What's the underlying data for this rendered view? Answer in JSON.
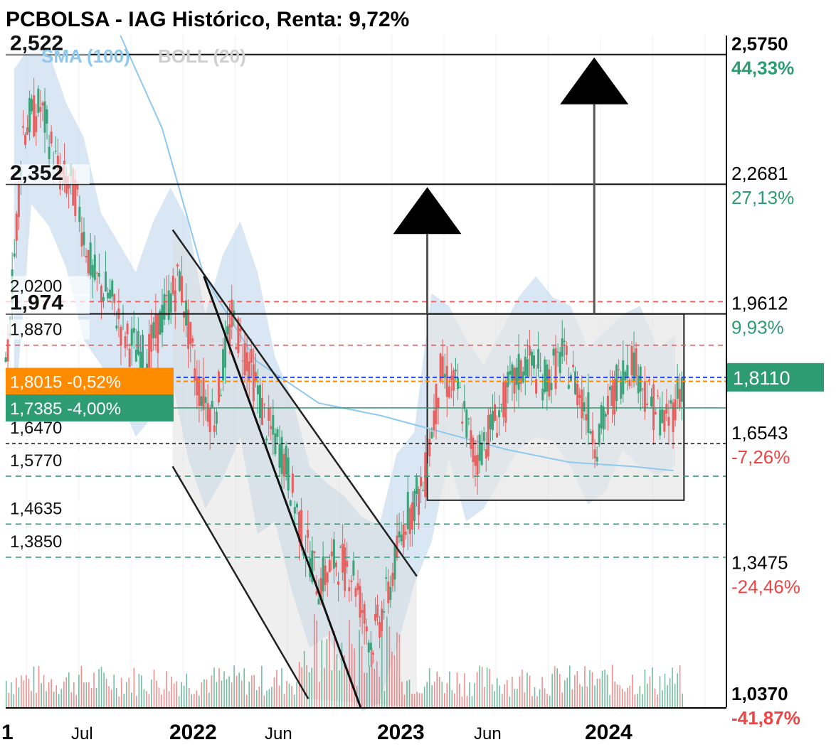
{
  "header": {
    "title": "PCBOLSA - IAG Histórico, Renta: 9,72%"
  },
  "legend": {
    "sma": "SMA (100)",
    "boll": "BOLL (20)",
    "sma_color": "#8fc8ef",
    "boll_color": "#cfcfcf"
  },
  "colors": {
    "up": "#3aa37a",
    "down": "#e86060",
    "band_fill": "#b8d4ea",
    "box_fill": "#e6e6e6",
    "orange": "#ff8c00",
    "green_tag": "#2e9c72",
    "gain_text": "#2e9c72",
    "loss_text": "#ee4444"
  },
  "chart_data": {
    "type": "candlestick",
    "title": "PCBOLSA - IAG Histórico, Renta: 9,72%",
    "x_ticks": [
      "1",
      "Jul",
      "2022",
      "Jun",
      "2023",
      "Jun",
      "2024"
    ],
    "x_range": [
      "2021-01",
      "2024-05"
    ],
    "ylim": [
      1.03,
      2.62
    ],
    "left_levels": [
      {
        "label": "2,522",
        "value": 2.575,
        "style": "solid"
      },
      {
        "label": "2,352",
        "value": 2.268,
        "style": "solid"
      },
      {
        "label": "2,0200",
        "value": 1.99,
        "style": "red-dash"
      },
      {
        "label": "1,974",
        "value": 1.961,
        "style": "solid"
      },
      {
        "label": "1,8870",
        "value": 1.887,
        "style": "red-dash"
      },
      {
        "label": "1,6470",
        "value": 1.654,
        "style": "black-dash"
      },
      {
        "label": "1,5770",
        "value": 1.577,
        "style": "green-dash"
      },
      {
        "label": "1,4635",
        "value": 1.4635,
        "style": "green-dash"
      },
      {
        "label": "1,3850",
        "value": 1.385,
        "style": "green-dash"
      }
    ],
    "right_levels": [
      {
        "price": "2,5750",
        "pct": "44,33%",
        "value": 2.575,
        "bold": true,
        "positive": true
      },
      {
        "price": "2,2681",
        "pct": "27,13%",
        "value": 2.268,
        "bold": false,
        "positive": true
      },
      {
        "price": "1,9612",
        "pct": "9,93%",
        "value": 1.961,
        "bold": false,
        "positive": true
      },
      {
        "price": "1,6543",
        "pct": "-7,26%",
        "value": 1.654,
        "bold": false,
        "positive": false
      },
      {
        "price": "1,3475",
        "pct": "-24,46%",
        "value": 1.3475,
        "bold": false,
        "positive": false
      },
      {
        "price": "1,0370",
        "pct": "-41,87%",
        "value": 1.037,
        "bold": true,
        "positive": false
      }
    ],
    "tags": [
      {
        "text": "1,8015  -0,52%",
        "value": 1.8015,
        "color": "orange"
      },
      {
        "text": "1,7385  -4,00%",
        "value": 1.7385,
        "color": "green"
      }
    ],
    "current_price": {
      "text": "1,8110",
      "value": 1.811
    },
    "channel": {
      "upper": [
        [
          2021.8,
          2.16
        ],
        [
          2022.97,
          1.34
        ]
      ],
      "lower": [
        [
          2021.8,
          1.6
        ],
        [
          2022.45,
          1.05
        ]
      ]
    },
    "steep_line": [
      [
        2021.95,
        2.05
      ],
      [
        2022.7,
        1.03
      ]
    ],
    "range_box": {
      "from": 2023.02,
      "to": 2024.25,
      "top": 1.961,
      "bottom": 1.52
    },
    "targets": [
      {
        "x": 2023.02,
        "base": 1.961,
        "tip": 2.268
      },
      {
        "x": 2023.82,
        "base": 1.961,
        "tip": 2.575
      }
    ],
    "candles_weekly": [
      [
        "2021-01",
        1.8,
        2.4,
        1.78,
        2.46
      ],
      [
        "2021-02",
        2.4,
        2.45,
        2.3,
        2.52
      ],
      [
        "2021-03",
        2.45,
        2.3,
        2.25,
        2.5
      ],
      [
        "2021-04",
        2.3,
        2.25,
        2.15,
        2.38
      ],
      [
        "2021-05",
        2.25,
        2.05,
        1.98,
        2.3
      ],
      [
        "2021-06",
        2.05,
        2.0,
        1.92,
        2.12
      ],
      [
        "2021-07",
        2.0,
        1.9,
        1.85,
        2.05
      ],
      [
        "2021-08",
        1.9,
        1.85,
        1.75,
        1.98
      ],
      [
        "2021-09",
        1.85,
        1.95,
        1.8,
        2.1
      ],
      [
        "2021-10",
        1.95,
        2.05,
        1.9,
        2.18
      ],
      [
        "2021-11",
        2.05,
        1.8,
        1.7,
        2.1
      ],
      [
        "2021-12",
        1.8,
        1.72,
        1.58,
        1.88
      ],
      [
        "2022-01",
        1.72,
        1.95,
        1.65,
        2.02
      ],
      [
        "2022-02",
        1.95,
        1.85,
        1.75,
        2.1
      ],
      [
        "2022-03",
        1.85,
        1.7,
        1.52,
        1.98
      ],
      [
        "2022-04",
        1.7,
        1.62,
        1.55,
        1.78
      ],
      [
        "2022-05",
        1.62,
        1.45,
        1.38,
        1.68
      ],
      [
        "2022-06",
        1.45,
        1.32,
        1.25,
        1.52
      ],
      [
        "2022-07",
        1.32,
        1.38,
        1.28,
        1.48
      ],
      [
        "2022-08",
        1.38,
        1.35,
        1.2,
        1.45
      ],
      [
        "2022-09",
        1.35,
        1.18,
        1.1,
        1.4
      ],
      [
        "2022-10",
        1.18,
        1.3,
        1.12,
        1.38
      ],
      [
        "2022-11",
        1.3,
        1.48,
        1.25,
        1.55
      ],
      [
        "2022-12",
        1.48,
        1.55,
        1.4,
        1.6
      ],
      [
        "2023-01",
        1.55,
        1.82,
        1.5,
        1.93
      ],
      [
        "2023-02",
        1.82,
        1.78,
        1.7,
        1.9
      ],
      [
        "2023-03",
        1.78,
        1.62,
        1.55,
        1.82
      ],
      [
        "2023-04",
        1.62,
        1.7,
        1.58,
        1.76
      ],
      [
        "2023-05",
        1.7,
        1.78,
        1.65,
        1.84
      ],
      [
        "2023-06",
        1.78,
        1.85,
        1.72,
        1.92
      ],
      [
        "2023-07",
        1.85,
        1.8,
        1.75,
        1.97
      ],
      [
        "2023-08",
        1.8,
        1.86,
        1.74,
        1.92
      ],
      [
        "2023-09",
        1.86,
        1.78,
        1.68,
        1.9
      ],
      [
        "2023-10",
        1.78,
        1.66,
        1.59,
        1.8
      ],
      [
        "2023-11",
        1.66,
        1.78,
        1.62,
        1.84
      ],
      [
        "2023-12",
        1.78,
        1.86,
        1.72,
        1.88
      ],
      [
        "2024-01",
        1.86,
        1.76,
        1.68,
        1.9
      ],
      [
        "2024-02",
        1.76,
        1.7,
        1.66,
        1.8
      ],
      [
        "2024-03",
        1.7,
        1.81,
        1.68,
        1.83
      ]
    ]
  }
}
